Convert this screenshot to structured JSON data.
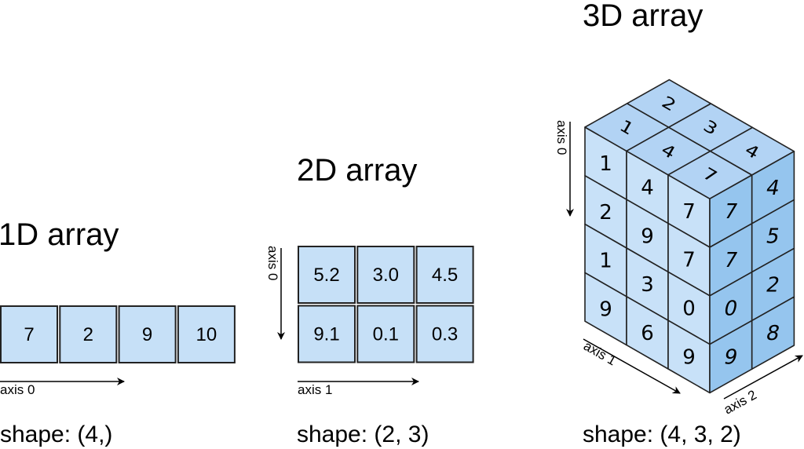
{
  "colors": {
    "cell": "#c6e0f7",
    "top": "#b2d3f4",
    "front": "#c8e1f8",
    "right": "#95c5ee",
    "stroke": "#222222"
  },
  "one_d": {
    "title": "1D array",
    "values": [
      "7",
      "2",
      "9",
      "10"
    ],
    "axis0": "axis 0",
    "shape": "shape: (4,)"
  },
  "two_d": {
    "title": "2D array",
    "values": [
      [
        "5.2",
        "3.0",
        "4.5"
      ],
      [
        "9.1",
        "0.1",
        "0.3"
      ]
    ],
    "axis0": "axis 0",
    "axis1": "axis 1",
    "shape": "shape: (2, 3)"
  },
  "three_d": {
    "title": "3D array",
    "front": [
      [
        "1",
        "4",
        "7"
      ],
      [
        "2",
        "9",
        "7"
      ],
      [
        "1",
        "3",
        "0"
      ],
      [
        "9",
        "6",
        "9"
      ]
    ],
    "top": [
      [
        "1",
        "4",
        "7"
      ],
      [
        "2",
        "3",
        "4"
      ]
    ],
    "right": [
      [
        "7",
        "4"
      ],
      [
        "7",
        "5"
      ],
      [
        "0",
        "2"
      ],
      [
        "9",
        "8"
      ]
    ],
    "axis0": "axis 0",
    "axis1": "axis 1",
    "axis2": "axis 2",
    "shape": "shape: (4, 3, 2)"
  }
}
